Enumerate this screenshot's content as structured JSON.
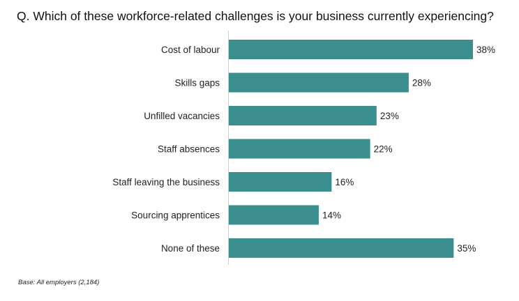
{
  "chart_data": {
    "type": "bar",
    "orientation": "horizontal",
    "title": "Q. Which of these workforce-related challenges is your business currently experiencing?",
    "categories": [
      "Cost of labour",
      "Skills gaps",
      "Unfilled vacancies",
      "Staff absences",
      "Staff leaving the business",
      "Sourcing apprentices",
      "None of these"
    ],
    "values": [
      38,
      28,
      23,
      22,
      16,
      14,
      35
    ],
    "value_labels": [
      "38%",
      "28%",
      "23%",
      "22%",
      "16%",
      "14%",
      "35%"
    ],
    "unit": "%",
    "xlim": [
      0,
      38
    ],
    "grid": false,
    "bar_color": "#3a8e8e",
    "footnote": "Base: All employers (2,184)"
  }
}
